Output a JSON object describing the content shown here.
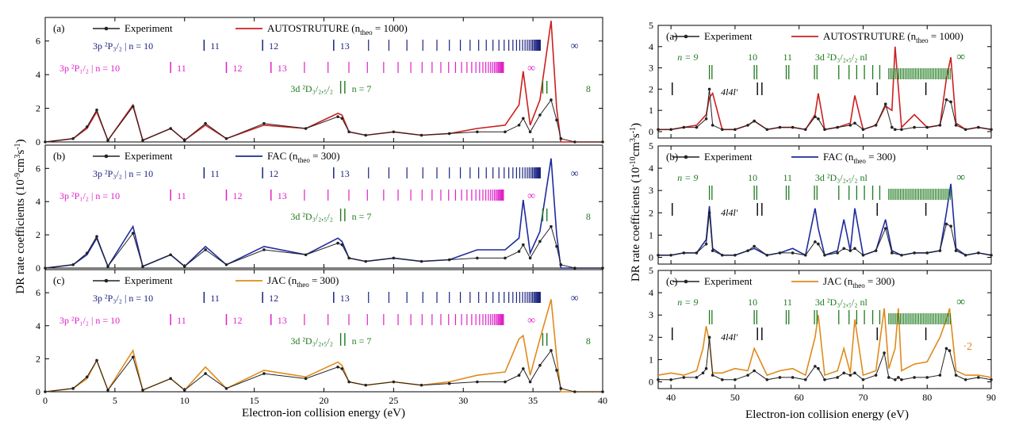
{
  "colors": {
    "experiment": "#222222",
    "autostructure": "#cc1f1f",
    "fac": "#1f2a9c",
    "jac": "#e08a1c",
    "series_blue": "#1a237e",
    "series_magenta": "#e020c8",
    "series_green": "#1e7a1e"
  },
  "chart_data": [
    {
      "type": "line",
      "panel": "(a)",
      "group": "left",
      "x": [
        0,
        2,
        3,
        3.7,
        4.5,
        6.3,
        7,
        9,
        10,
        11.5,
        13,
        15.7,
        18.7,
        21,
        21.3,
        21.8,
        23,
        25,
        27,
        29,
        31,
        33,
        34,
        34.3,
        34.8,
        35.5,
        36.3,
        36.7,
        37,
        38,
        40
      ],
      "series": [
        {
          "name": "Experiment",
          "values": [
            0,
            0.2,
            0.9,
            1.9,
            0.1,
            2.1,
            0.1,
            0.8,
            0.1,
            1.1,
            0.2,
            1.1,
            0.8,
            1.5,
            1.4,
            0.6,
            0.4,
            0.6,
            0.4,
            0.5,
            0.6,
            0.6,
            1.0,
            1.4,
            0.6,
            1.6,
            2.5,
            1.3,
            0.2,
            0.0,
            0.0
          ]
        },
        {
          "name": "AUTOSTRUTURE (n",
          "values": [
            0,
            0.2,
            0.8,
            1.8,
            0.1,
            2.2,
            0.1,
            0.8,
            0.1,
            1.0,
            0.2,
            1.0,
            0.8,
            1.7,
            1.6,
            0.6,
            0.4,
            0.6,
            0.4,
            0.5,
            0.8,
            1.0,
            2.2,
            4.2,
            1.0,
            2.5,
            7.2,
            2.0,
            0.0,
            0.0,
            0.0
          ]
        }
      ],
      "legend": {
        "exp": "Experiment",
        "theory_prefix": "AUTOSTRUTURE (n",
        "theory_sub": "theo",
        "theory_suffix": " = 1000)"
      },
      "xlim": [
        0,
        40
      ],
      "ylim": [
        0,
        7.4
      ],
      "yticks": [
        0,
        2,
        4,
        6
      ]
    },
    {
      "type": "line",
      "panel": "(b)",
      "group": "left",
      "x": [
        0,
        2,
        3,
        3.7,
        4.5,
        6.3,
        7,
        9,
        10,
        11.5,
        13,
        15.7,
        18.7,
        21,
        21.3,
        21.8,
        23,
        25,
        27,
        29,
        31,
        33,
        34,
        34.3,
        34.8,
        35.5,
        36.3,
        36.7,
        37,
        38,
        40
      ],
      "series": [
        {
          "name": "Experiment",
          "values": [
            0,
            0.2,
            0.9,
            1.9,
            0.1,
            2.1,
            0.1,
            0.8,
            0.1,
            1.1,
            0.2,
            1.1,
            0.8,
            1.5,
            1.4,
            0.6,
            0.4,
            0.6,
            0.4,
            0.5,
            0.6,
            0.6,
            1.0,
            1.4,
            0.6,
            1.6,
            2.5,
            1.3,
            0.2,
            0.0,
            0.0
          ]
        },
        {
          "name": "FAC (n",
          "values": [
            0,
            0.2,
            0.8,
            1.8,
            0.1,
            2.5,
            0.1,
            0.8,
            0.1,
            1.3,
            0.2,
            1.3,
            0.8,
            1.8,
            1.6,
            0.6,
            0.4,
            0.6,
            0.4,
            0.5,
            1.1,
            1.1,
            1.8,
            4.1,
            0.9,
            2.2,
            6.6,
            2.0,
            0.0,
            0.0,
            0.0
          ]
        }
      ],
      "legend": {
        "exp": "Experiment",
        "theory_prefix": "FAC (n",
        "theory_sub": "theo",
        "theory_suffix": " = 300)"
      },
      "xlim": [
        0,
        40
      ],
      "ylim": [
        0,
        7.4
      ],
      "yticks": [
        0,
        2,
        4,
        6
      ]
    },
    {
      "type": "line",
      "panel": "(c)",
      "group": "left",
      "x": [
        0,
        2,
        3,
        3.7,
        4.5,
        6.3,
        7,
        9,
        10,
        11.5,
        13,
        15.7,
        18.7,
        21,
        21.3,
        21.8,
        23,
        25,
        27,
        29,
        31,
        33,
        34,
        34.3,
        34.8,
        35.5,
        36.3,
        36.7,
        37,
        38,
        40
      ],
      "series": [
        {
          "name": "Experiment",
          "values": [
            0,
            0.2,
            0.9,
            1.9,
            0.1,
            2.1,
            0.1,
            0.8,
            0.1,
            1.1,
            0.2,
            1.1,
            0.8,
            1.5,
            1.4,
            0.6,
            0.4,
            0.6,
            0.4,
            0.5,
            0.6,
            0.6,
            1.0,
            1.4,
            0.6,
            1.6,
            2.5,
            1.3,
            0.2,
            0.0,
            0.0
          ]
        },
        {
          "name": "JAC (n",
          "values": [
            0,
            0.2,
            0.8,
            1.9,
            0.1,
            2.5,
            0.1,
            0.8,
            0.1,
            1.5,
            0.2,
            1.3,
            0.9,
            1.8,
            1.6,
            0.6,
            0.4,
            0.6,
            0.4,
            0.6,
            1.0,
            1.2,
            3.2,
            3.4,
            1.0,
            3.2,
            5.6,
            2.1,
            0.0,
            0.0,
            0.0
          ]
        }
      ],
      "legend": {
        "exp": "Experiment",
        "theory_prefix": "JAC (n",
        "theory_sub": "theo",
        "theory_suffix": " = 300)"
      },
      "xlim": [
        0,
        40
      ],
      "ylim": [
        0,
        7.4
      ],
      "yticks": [
        0,
        2,
        4,
        6
      ]
    },
    {
      "type": "line",
      "panel": "(a)",
      "group": "right",
      "x": [
        38,
        40,
        42,
        44,
        45.5,
        46,
        46.5,
        48,
        50,
        52,
        53,
        55,
        57,
        59,
        61,
        62.5,
        63,
        64,
        66,
        68,
        68.7,
        70,
        72,
        73.5,
        74.5,
        75,
        76,
        78,
        80,
        82,
        83,
        83.7,
        84.5,
        86,
        88,
        90
      ],
      "series": [
        {
          "name": "Experiment",
          "values": [
            0.1,
            0.1,
            0.2,
            0.2,
            0.6,
            2.0,
            0.3,
            0.1,
            0.1,
            0.3,
            0.5,
            0.1,
            0.2,
            0.2,
            0.1,
            0.7,
            0.6,
            0.1,
            0.2,
            0.3,
            0.4,
            0.1,
            0.3,
            1.3,
            0.2,
            0.1,
            0.1,
            0.2,
            0.2,
            0.3,
            1.5,
            1.4,
            0.3,
            0.1,
            0.2,
            0.1
          ]
        },
        {
          "name": "AUTOSTRUTURE (n",
          "values": [
            0.1,
            0.1,
            0.2,
            0.3,
            0.8,
            1.6,
            1.8,
            0.1,
            0.1,
            0.3,
            0.5,
            0.1,
            0.2,
            0.2,
            0.1,
            0.8,
            1.8,
            0.1,
            0.2,
            0.4,
            1.7,
            0.1,
            0.3,
            1.2,
            1.0,
            4.0,
            0.2,
            0.8,
            0.2,
            0.3,
            2.5,
            3.5,
            0.4,
            0.1,
            0.2,
            0.1
          ]
        }
      ],
      "legend": {
        "exp": "Experiment",
        "theory_prefix": "AUTOSTRUTURE (n",
        "theory_sub": "theo",
        "theory_suffix": " = 1000)"
      },
      "xlim": [
        38,
        90
      ],
      "ylim": [
        -0.3,
        5
      ],
      "yticks": [
        0,
        1,
        2,
        3,
        4,
        5
      ]
    },
    {
      "type": "line",
      "panel": "(b)",
      "group": "right",
      "x": [
        38,
        40,
        42,
        44,
        45.5,
        46,
        46.5,
        48,
        50,
        52,
        53,
        55,
        57,
        59,
        61,
        62.5,
        63,
        64,
        66,
        67,
        68,
        68.7,
        70,
        72,
        73.5,
        74.5,
        76,
        78,
        80,
        82,
        83,
        83.7,
        84.5,
        86,
        88,
        90
      ],
      "series": [
        {
          "name": "Experiment",
          "values": [
            0.1,
            0.1,
            0.2,
            0.2,
            0.6,
            2.0,
            0.3,
            0.1,
            0.1,
            0.3,
            0.5,
            0.1,
            0.2,
            0.2,
            0.1,
            0.7,
            0.6,
            0.1,
            0.2,
            0.4,
            0.3,
            0.4,
            0.1,
            0.3,
            1.3,
            0.2,
            0.1,
            0.2,
            0.2,
            0.3,
            1.5,
            1.4,
            0.3,
            0.1,
            0.2,
            0.1
          ]
        },
        {
          "name": "FAC (n",
          "values": [
            0.1,
            0.1,
            0.2,
            0.2,
            0.8,
            2.3,
            0.4,
            0.1,
            0.1,
            0.3,
            0.4,
            0.1,
            0.2,
            0.4,
            0.1,
            2.2,
            1.3,
            0.1,
            0.3,
            1.7,
            0.3,
            2.2,
            0.1,
            0.3,
            1.7,
            0.3,
            0.1,
            0.2,
            0.2,
            0.3,
            2.0,
            3.3,
            0.4,
            0.1,
            0.2,
            0.1
          ]
        }
      ],
      "legend": {
        "exp": "Experiment",
        "theory_prefix": "FAC (n",
        "theory_sub": "theo",
        "theory_suffix": " = 300)"
      },
      "xlim": [
        38,
        90
      ],
      "ylim": [
        -0.3,
        5
      ],
      "yticks": [
        0,
        1,
        2,
        3,
        4,
        5
      ]
    },
    {
      "type": "line",
      "panel": "(c)",
      "group": "right",
      "x": [
        38,
        40,
        42,
        44,
        45,
        45.5,
        46,
        46.5,
        48,
        50,
        52,
        53,
        55,
        57,
        59,
        61,
        62.5,
        63,
        64,
        66,
        67,
        68,
        68.7,
        70,
        72,
        73.3,
        74,
        75,
        75.5,
        76,
        78,
        80,
        82,
        83,
        83.5,
        84.5,
        86,
        88,
        90
      ],
      "series": [
        {
          "name": "Experiment",
          "values": [
            0.1,
            0.1,
            0.2,
            0.2,
            0.4,
            0.6,
            2.0,
            0.3,
            0.1,
            0.1,
            0.3,
            0.5,
            0.1,
            0.2,
            0.2,
            0.1,
            0.7,
            0.6,
            0.1,
            0.2,
            0.4,
            0.3,
            0.4,
            0.1,
            0.3,
            1.3,
            0.2,
            0.1,
            0.2,
            0.1,
            0.2,
            0.2,
            0.3,
            1.5,
            1.4,
            0.3,
            0.1,
            0.2,
            0.1
          ]
        },
        {
          "name": "JAC (n",
          "values": [
            0.3,
            0.4,
            0.3,
            0.5,
            1.5,
            2.5,
            1.8,
            0.4,
            0.4,
            0.6,
            0.5,
            1.5,
            0.3,
            0.5,
            0.6,
            0.3,
            2.0,
            3.0,
            0.3,
            0.5,
            1.5,
            0.4,
            2.8,
            0.3,
            0.5,
            3.3,
            0.6,
            1.5,
            3.3,
            0.5,
            0.8,
            0.9,
            2.0,
            2.8,
            3.3,
            0.5,
            0.3,
            0.3,
            0.2
          ]
        }
      ],
      "legend": {
        "exp": "Experiment",
        "theory_prefix": "JAC (n",
        "theory_sub": "theo",
        "theory_suffix": " = 300)"
      },
      "xlim": [
        38,
        90
      ],
      "ylim": [
        -0.3,
        5
      ],
      "yticks": [
        0,
        1,
        2,
        3,
        4,
        5
      ]
    }
  ],
  "axes": {
    "left_xlabel": "Electron-ion collision energy (eV)",
    "left_ylabel_pre": "DR rate coefficients (10",
    "left_ylabel_exp": "-9",
    "left_ylabel_post": "cm",
    "left_xticks": [
      0,
      5,
      10,
      15,
      20,
      25,
      30,
      35,
      40
    ],
    "right_xlabel": "Electron-ion collision energy (eV)",
    "right_ylabel_pre": "DR rate coefficients (10",
    "right_ylabel_exp": "-10",
    "right_ylabel_post": "cm",
    "right_xticks": [
      40,
      50,
      60,
      70,
      80,
      90
    ]
  },
  "left_annotations": {
    "p32_label": "3p ²P₃/₂",
    "p32_n": "n = 10",
    "p32_levels": [
      "11",
      "12",
      "13"
    ],
    "p12_label": "3p ²P₁/₂",
    "p12_n": "n = 10",
    "p12_levels": [
      "11",
      "12",
      "13"
    ],
    "d_label": "3d ²D₃/₂,₅/₂",
    "d_n": "n = 7",
    "d_8": "8",
    "infinity": "∞"
  },
  "right_annotations": {
    "n9": "n = 9",
    "n10": "10",
    "n11": "11",
    "d_label": "3d  ²D₃/₂,₅/₂ nl",
    "config_4l4l": "4l4l′",
    "infinity": "∞",
    "scale_note": "·2"
  }
}
